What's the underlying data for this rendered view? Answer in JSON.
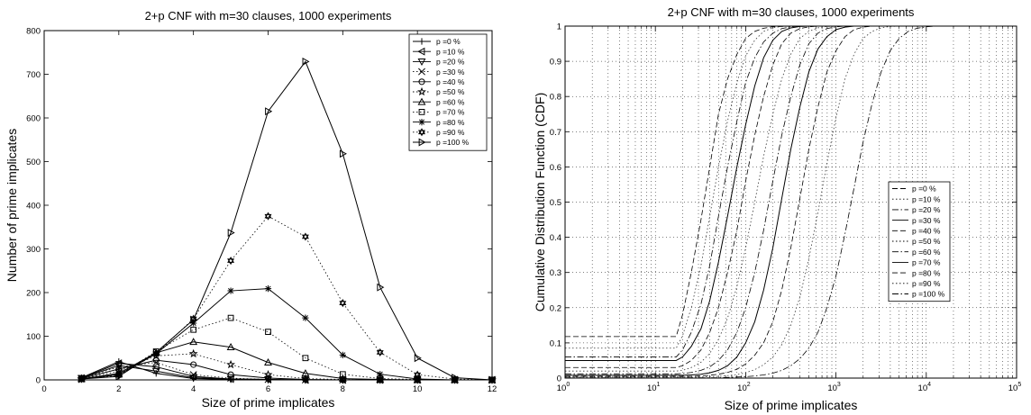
{
  "chart_data": [
    {
      "type": "line",
      "title": "2+p CNF with m=30 clauses, 1000 experiments",
      "xlabel": "Size of prime implicates",
      "ylabel": "Number of prime implicates",
      "xlim": [
        0,
        12
      ],
      "ylim": [
        0,
        800
      ],
      "xticks": [
        "0",
        "2",
        "4",
        "6",
        "8",
        "10",
        "12"
      ],
      "yticks": [
        "0",
        "100",
        "200",
        "300",
        "400",
        "500",
        "600",
        "700",
        "800"
      ],
      "grid": false,
      "legend_position": "top-right",
      "x": [
        1,
        2,
        3,
        4,
        5,
        6,
        7,
        8,
        9,
        10,
        11,
        12
      ],
      "series": [
        {
          "name": "p =0 %",
          "marker": "plus",
          "line": "solid",
          "values": [
            5,
            42,
            15,
            3,
            1,
            0,
            0,
            0,
            0,
            0,
            0,
            0
          ]
        },
        {
          "name": "p =10 %",
          "marker": "triangle-left",
          "line": "solid",
          "values": [
            4,
            38,
            30,
            8,
            2,
            1,
            0,
            0,
            0,
            0,
            0,
            0
          ]
        },
        {
          "name": "p =20 %",
          "marker": "triangle-down",
          "line": "solid",
          "values": [
            4,
            33,
            20,
            5,
            2,
            1,
            0,
            0,
            0,
            0,
            0,
            0
          ]
        },
        {
          "name": "p =30 %",
          "marker": "x",
          "line": "dotted",
          "values": [
            3,
            30,
            40,
            12,
            4,
            1,
            0,
            0,
            0,
            0,
            0,
            0
          ]
        },
        {
          "name": "p =40 %",
          "marker": "circle",
          "line": "solid",
          "values": [
            3,
            25,
            45,
            35,
            12,
            4,
            1,
            0,
            0,
            0,
            0,
            0
          ]
        },
        {
          "name": "p =50 %",
          "marker": "star",
          "line": "dotted",
          "values": [
            2,
            20,
            55,
            60,
            35,
            12,
            3,
            1,
            0,
            0,
            0,
            0
          ]
        },
        {
          "name": "p =60 %",
          "marker": "triangle-up",
          "line": "solid",
          "values": [
            2,
            15,
            62,
            87,
            75,
            40,
            15,
            3,
            1,
            0,
            0,
            0
          ]
        },
        {
          "name": "p =70 %",
          "marker": "square",
          "line": "dotted",
          "values": [
            2,
            12,
            65,
            115,
            142,
            110,
            50,
            13,
            3,
            1,
            0,
            0
          ]
        },
        {
          "name": "p =80 %",
          "marker": "asterisk",
          "line": "solid",
          "values": [
            2,
            12,
            60,
            130,
            204,
            209,
            142,
            57,
            13,
            2,
            0,
            0
          ]
        },
        {
          "name": "p =90 %",
          "marker": "hexagram",
          "line": "dotted",
          "values": [
            2,
            10,
            60,
            140,
            273,
            375,
            328,
            176,
            63,
            12,
            2,
            0
          ]
        },
        {
          "name": "p =100 %",
          "marker": "triangle-right",
          "line": "solid",
          "values": [
            2,
            8,
            63,
            138,
            337,
            615,
            729,
            518,
            212,
            50,
            5,
            0
          ]
        }
      ]
    },
    {
      "type": "line",
      "title": "2+p CNF with m=30 clauses, 1000 experiments",
      "xlabel": "Size of prime implicates",
      "ylabel": "Cumulative Distribution Function (CDF)",
      "xscale": "log",
      "xlim": [
        1,
        100000
      ],
      "ylim": [
        0,
        1
      ],
      "xtick_exponents": [
        "0",
        "1",
        "2",
        "3",
        "4",
        "5"
      ],
      "yticks": [
        "0",
        "0.1",
        "0.2",
        "0.3",
        "0.4",
        "0.5",
        "0.6",
        "0.7",
        "0.8",
        "0.9",
        "1"
      ],
      "grid": true,
      "legend_position": "center-right",
      "x": [
        1,
        17,
        20,
        25,
        32,
        40,
        50,
        63,
        80,
        100,
        126,
        158,
        200,
        251,
        316,
        398,
        501,
        631,
        794,
        1000,
        1259,
        1585,
        1995,
        2512,
        3162,
        3981,
        5012,
        6310,
        7943,
        10000,
        12589,
        15849,
        19953,
        25119,
        31623,
        39811,
        50119,
        63096,
        79433,
        100000
      ],
      "series": [
        {
          "name": "p =0 %",
          "line": "dashed",
          "values": [
            0.118,
            0.118,
            0.18,
            0.3,
            0.45,
            0.6,
            0.75,
            0.85,
            0.92,
            0.965,
            0.985,
            0.994,
            0.998,
            0.999,
            1,
            1,
            1,
            1,
            1,
            1,
            1,
            1,
            1,
            1,
            1,
            1,
            1,
            1,
            1,
            1,
            1,
            1,
            1,
            1,
            1,
            1,
            1,
            1,
            1,
            1
          ]
        },
        {
          "name": "p =10 %",
          "line": "dotted",
          "values": [
            0.085,
            0.085,
            0.12,
            0.2,
            0.32,
            0.46,
            0.6,
            0.73,
            0.84,
            0.915,
            0.96,
            0.985,
            0.995,
            0.999,
            1,
            1,
            1,
            1,
            1,
            1,
            1,
            1,
            1,
            1,
            1,
            1,
            1,
            1,
            1,
            1,
            1,
            1,
            1,
            1,
            1,
            1,
            1,
            1,
            1,
            1
          ]
        },
        {
          "name": "p =20 %",
          "line": "dashdot",
          "values": [
            0.06,
            0.06,
            0.08,
            0.13,
            0.21,
            0.32,
            0.46,
            0.6,
            0.73,
            0.84,
            0.91,
            0.955,
            0.98,
            0.993,
            0.998,
            1,
            1,
            1,
            1,
            1,
            1,
            1,
            1,
            1,
            1,
            1,
            1,
            1,
            1,
            1,
            1,
            1,
            1,
            1,
            1,
            1,
            1,
            1,
            1,
            1
          ]
        },
        {
          "name": "p =30 %",
          "line": "solid",
          "values": [
            0.05,
            0.05,
            0.06,
            0.09,
            0.14,
            0.22,
            0.33,
            0.46,
            0.6,
            0.72,
            0.83,
            0.91,
            0.96,
            0.985,
            0.995,
            0.999,
            1,
            1,
            1,
            1,
            1,
            1,
            1,
            1,
            1,
            1,
            1,
            1,
            1,
            1,
            1,
            1,
            1,
            1,
            1,
            1,
            1,
            1,
            1,
            1
          ]
        },
        {
          "name": "p =40 %",
          "line": "dashed",
          "values": [
            0.03,
            0.03,
            0.035,
            0.05,
            0.08,
            0.13,
            0.2,
            0.3,
            0.42,
            0.56,
            0.69,
            0.8,
            0.89,
            0.95,
            0.98,
            0.993,
            0.998,
            1,
            1,
            1,
            1,
            1,
            1,
            1,
            1,
            1,
            1,
            1,
            1,
            1,
            1,
            1,
            1,
            1,
            1,
            1,
            1,
            1,
            1,
            1
          ]
        },
        {
          "name": "p =50 %",
          "line": "dotted",
          "values": [
            0.02,
            0.02,
            0.022,
            0.03,
            0.045,
            0.07,
            0.11,
            0.17,
            0.26,
            0.37,
            0.5,
            0.63,
            0.75,
            0.85,
            0.92,
            0.965,
            0.985,
            0.995,
            0.999,
            1,
            1,
            1,
            1,
            1,
            1,
            1,
            1,
            1,
            1,
            1,
            1,
            1,
            1,
            1,
            1,
            1,
            1,
            1,
            1,
            1
          ]
        },
        {
          "name": "p =60 %",
          "line": "dashdot",
          "values": [
            0.012,
            0.012,
            0.013,
            0.016,
            0.022,
            0.032,
            0.05,
            0.08,
            0.13,
            0.2,
            0.3,
            0.42,
            0.56,
            0.69,
            0.8,
            0.89,
            0.95,
            0.98,
            0.993,
            0.998,
            1,
            1,
            1,
            1,
            1,
            1,
            1,
            1,
            1,
            1,
            1,
            1,
            1,
            1,
            1,
            1,
            1,
            1,
            1,
            1
          ]
        },
        {
          "name": "p =70 %",
          "line": "solid",
          "values": [
            0.008,
            0.008,
            0.008,
            0.009,
            0.011,
            0.015,
            0.022,
            0.035,
            0.06,
            0.1,
            0.16,
            0.25,
            0.37,
            0.51,
            0.65,
            0.77,
            0.87,
            0.935,
            0.97,
            0.99,
            0.997,
            1,
            1,
            1,
            1,
            1,
            1,
            1,
            1,
            1,
            1,
            1,
            1,
            1,
            1,
            1,
            1,
            1,
            1,
            1
          ]
        },
        {
          "name": "p =80 %",
          "line": "dashed",
          "values": [
            0.005,
            0.005,
            0.005,
            0.005,
            0.006,
            0.008,
            0.011,
            0.016,
            0.025,
            0.04,
            0.065,
            0.1,
            0.16,
            0.25,
            0.37,
            0.51,
            0.65,
            0.77,
            0.87,
            0.93,
            0.97,
            0.99,
            0.997,
            1,
            1,
            1,
            1,
            1,
            1,
            1,
            1,
            1,
            1,
            1,
            1,
            1,
            1,
            1,
            1,
            1
          ]
        },
        {
          "name": "p =90 %",
          "line": "dotted",
          "values": [
            0.003,
            0.003,
            0.003,
            0.003,
            0.003,
            0.004,
            0.005,
            0.007,
            0.01,
            0.015,
            0.024,
            0.038,
            0.06,
            0.095,
            0.15,
            0.23,
            0.34,
            0.47,
            0.61,
            0.74,
            0.85,
            0.92,
            0.965,
            0.985,
            0.995,
            0.999,
            1,
            1,
            1,
            1,
            1,
            1,
            1,
            1,
            1,
            1,
            1,
            1,
            1,
            1
          ]
        },
        {
          "name": "p =100 %",
          "line": "dashdot",
          "values": [
            0.001,
            0.001,
            0.001,
            0.001,
            0.001,
            0.001,
            0.001,
            0.002,
            0.003,
            0.004,
            0.006,
            0.009,
            0.014,
            0.022,
            0.035,
            0.055,
            0.085,
            0.13,
            0.2,
            0.29,
            0.41,
            0.54,
            0.67,
            0.78,
            0.87,
            0.93,
            0.965,
            0.985,
            0.994,
            0.998,
            1,
            1,
            1,
            1,
            1,
            1,
            1,
            1,
            1,
            1
          ]
        }
      ]
    }
  ]
}
